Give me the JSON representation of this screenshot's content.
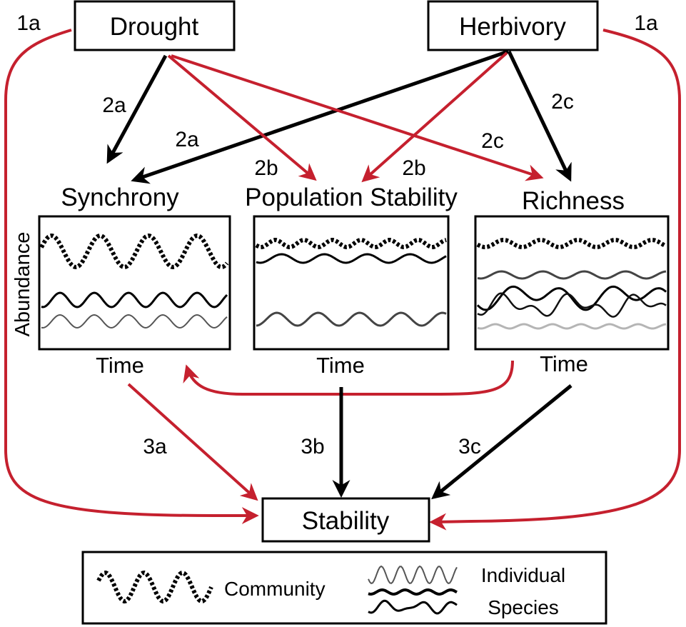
{
  "nodes": {
    "drought": "Drought",
    "herbivory": "Herbivory",
    "synchrony": "Synchrony",
    "population_stability": "Population Stability",
    "richness": "Richness",
    "stability": "Stability"
  },
  "axes": {
    "y_label": "Abundance",
    "x_label_synchrony": "Time",
    "x_label_population": "Time",
    "x_label_richness": "Time"
  },
  "path_labels": {
    "p1a_left": "1a",
    "p1a_right": "1a",
    "p2a_drought": "2a",
    "p2a_herbivory": "2a",
    "p2b_drought": "2b",
    "p2b_herbivory": "2b",
    "p2c_drought": "2c",
    "p2c_herbivory": "2c",
    "p3a": "3a",
    "p3b": "3b",
    "p3c": "3c"
  },
  "legend": {
    "community": "Community",
    "individual_line1": "Individual",
    "individual_line2": "Species"
  },
  "colors": {
    "negative_path": "#c5202e",
    "positive_path": "#000000"
  }
}
